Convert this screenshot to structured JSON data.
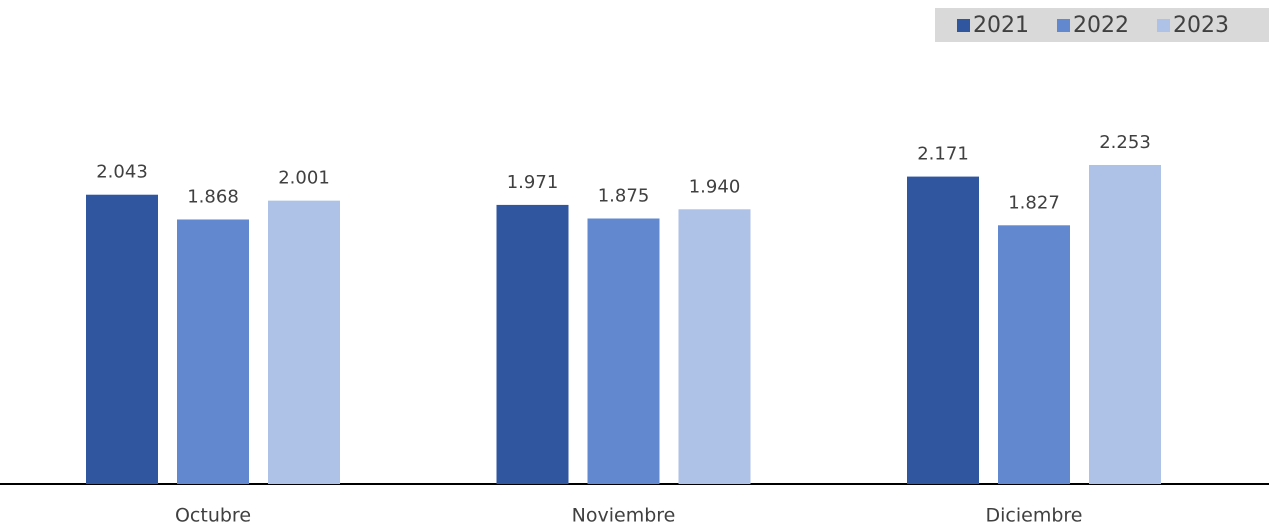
{
  "chart_data": {
    "type": "bar",
    "categories": [
      "Octubre",
      "Noviembre",
      "Diciembre"
    ],
    "series": [
      {
        "name": "2021",
        "color": "#30569f",
        "values": [
          2043,
          1971,
          2171
        ],
        "value_labels": [
          "2.043",
          "1.971",
          "2.171"
        ]
      },
      {
        "name": "2022",
        "color": "#6288cf",
        "values": [
          1868,
          1875,
          1827
        ],
        "value_labels": [
          "1.868",
          "1.875",
          "1.827"
        ]
      },
      {
        "name": "2023",
        "color": "#adc2e6",
        "values": [
          2001,
          1940,
          2253
        ],
        "value_labels": [
          "2.001",
          "1.940",
          "2.253"
        ]
      }
    ],
    "legend": "top-right"
  }
}
